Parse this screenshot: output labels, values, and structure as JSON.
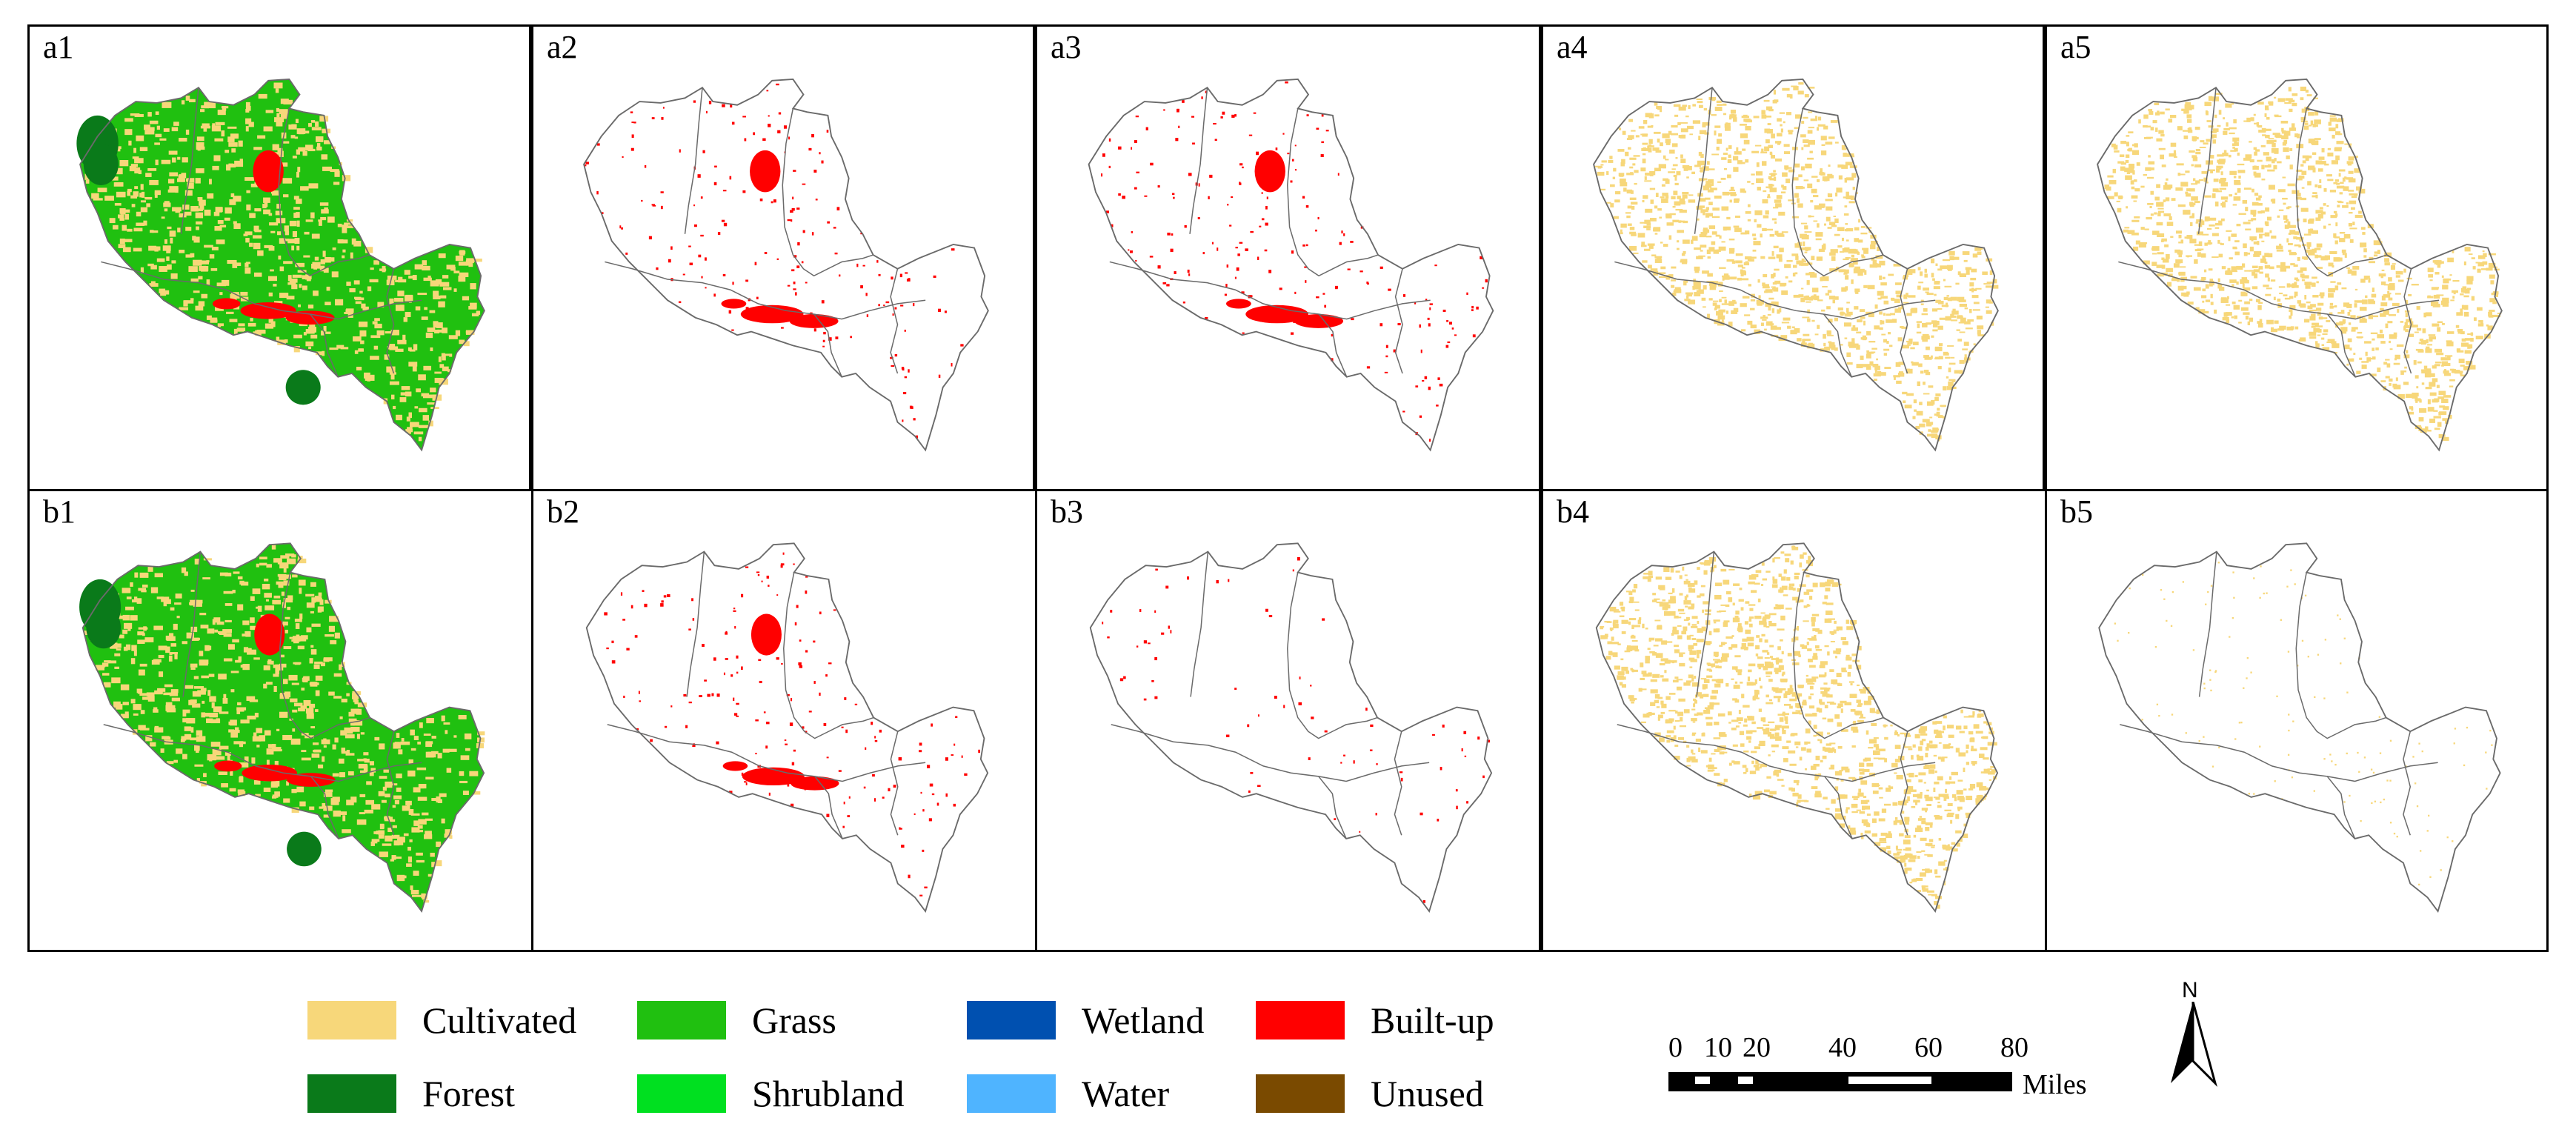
{
  "panels": [
    {
      "id": "a1",
      "label": "a1",
      "mode": "full"
    },
    {
      "id": "a2",
      "label": "a2",
      "mode": "red"
    },
    {
      "id": "a3",
      "label": "a3",
      "mode": "red"
    },
    {
      "id": "a4",
      "label": "a4",
      "mode": "yellow"
    },
    {
      "id": "a5",
      "label": "a5",
      "mode": "yellow"
    },
    {
      "id": "b1",
      "label": "b1",
      "mode": "full"
    },
    {
      "id": "b2",
      "label": "b2",
      "mode": "red"
    },
    {
      "id": "b3",
      "label": "b3",
      "mode": "red-sparse"
    },
    {
      "id": "b4",
      "label": "b4",
      "mode": "yellow"
    },
    {
      "id": "b5",
      "label": "b5",
      "mode": "yellow-sparse"
    }
  ],
  "legend": [
    {
      "label": "Cultivated",
      "color": "#f7d77a"
    },
    {
      "label": "Grass",
      "color": "#20c010"
    },
    {
      "label": "Wetland",
      "color": "#0050b0"
    },
    {
      "label": "Built-up",
      "color": "#ff0000"
    },
    {
      "label": "Forest",
      "color": "#0a7a1a"
    },
    {
      "label": "Shrubland",
      "color": "#00e020"
    },
    {
      "label": "Water",
      "color": "#4fb4ff"
    },
    {
      "label": "Unused",
      "color": "#7a4a00"
    }
  ],
  "scale_bar": {
    "ticks": [
      "0",
      "10",
      "20",
      "40",
      "60",
      "80"
    ],
    "unit": "Miles"
  },
  "north_arrow": {
    "label": "N"
  },
  "colors": {
    "boundary": "#6a6a6a",
    "cultivated": "#f7d77a",
    "grass": "#20c010",
    "forest": "#0a7a1a",
    "builtup": "#ff0000"
  }
}
